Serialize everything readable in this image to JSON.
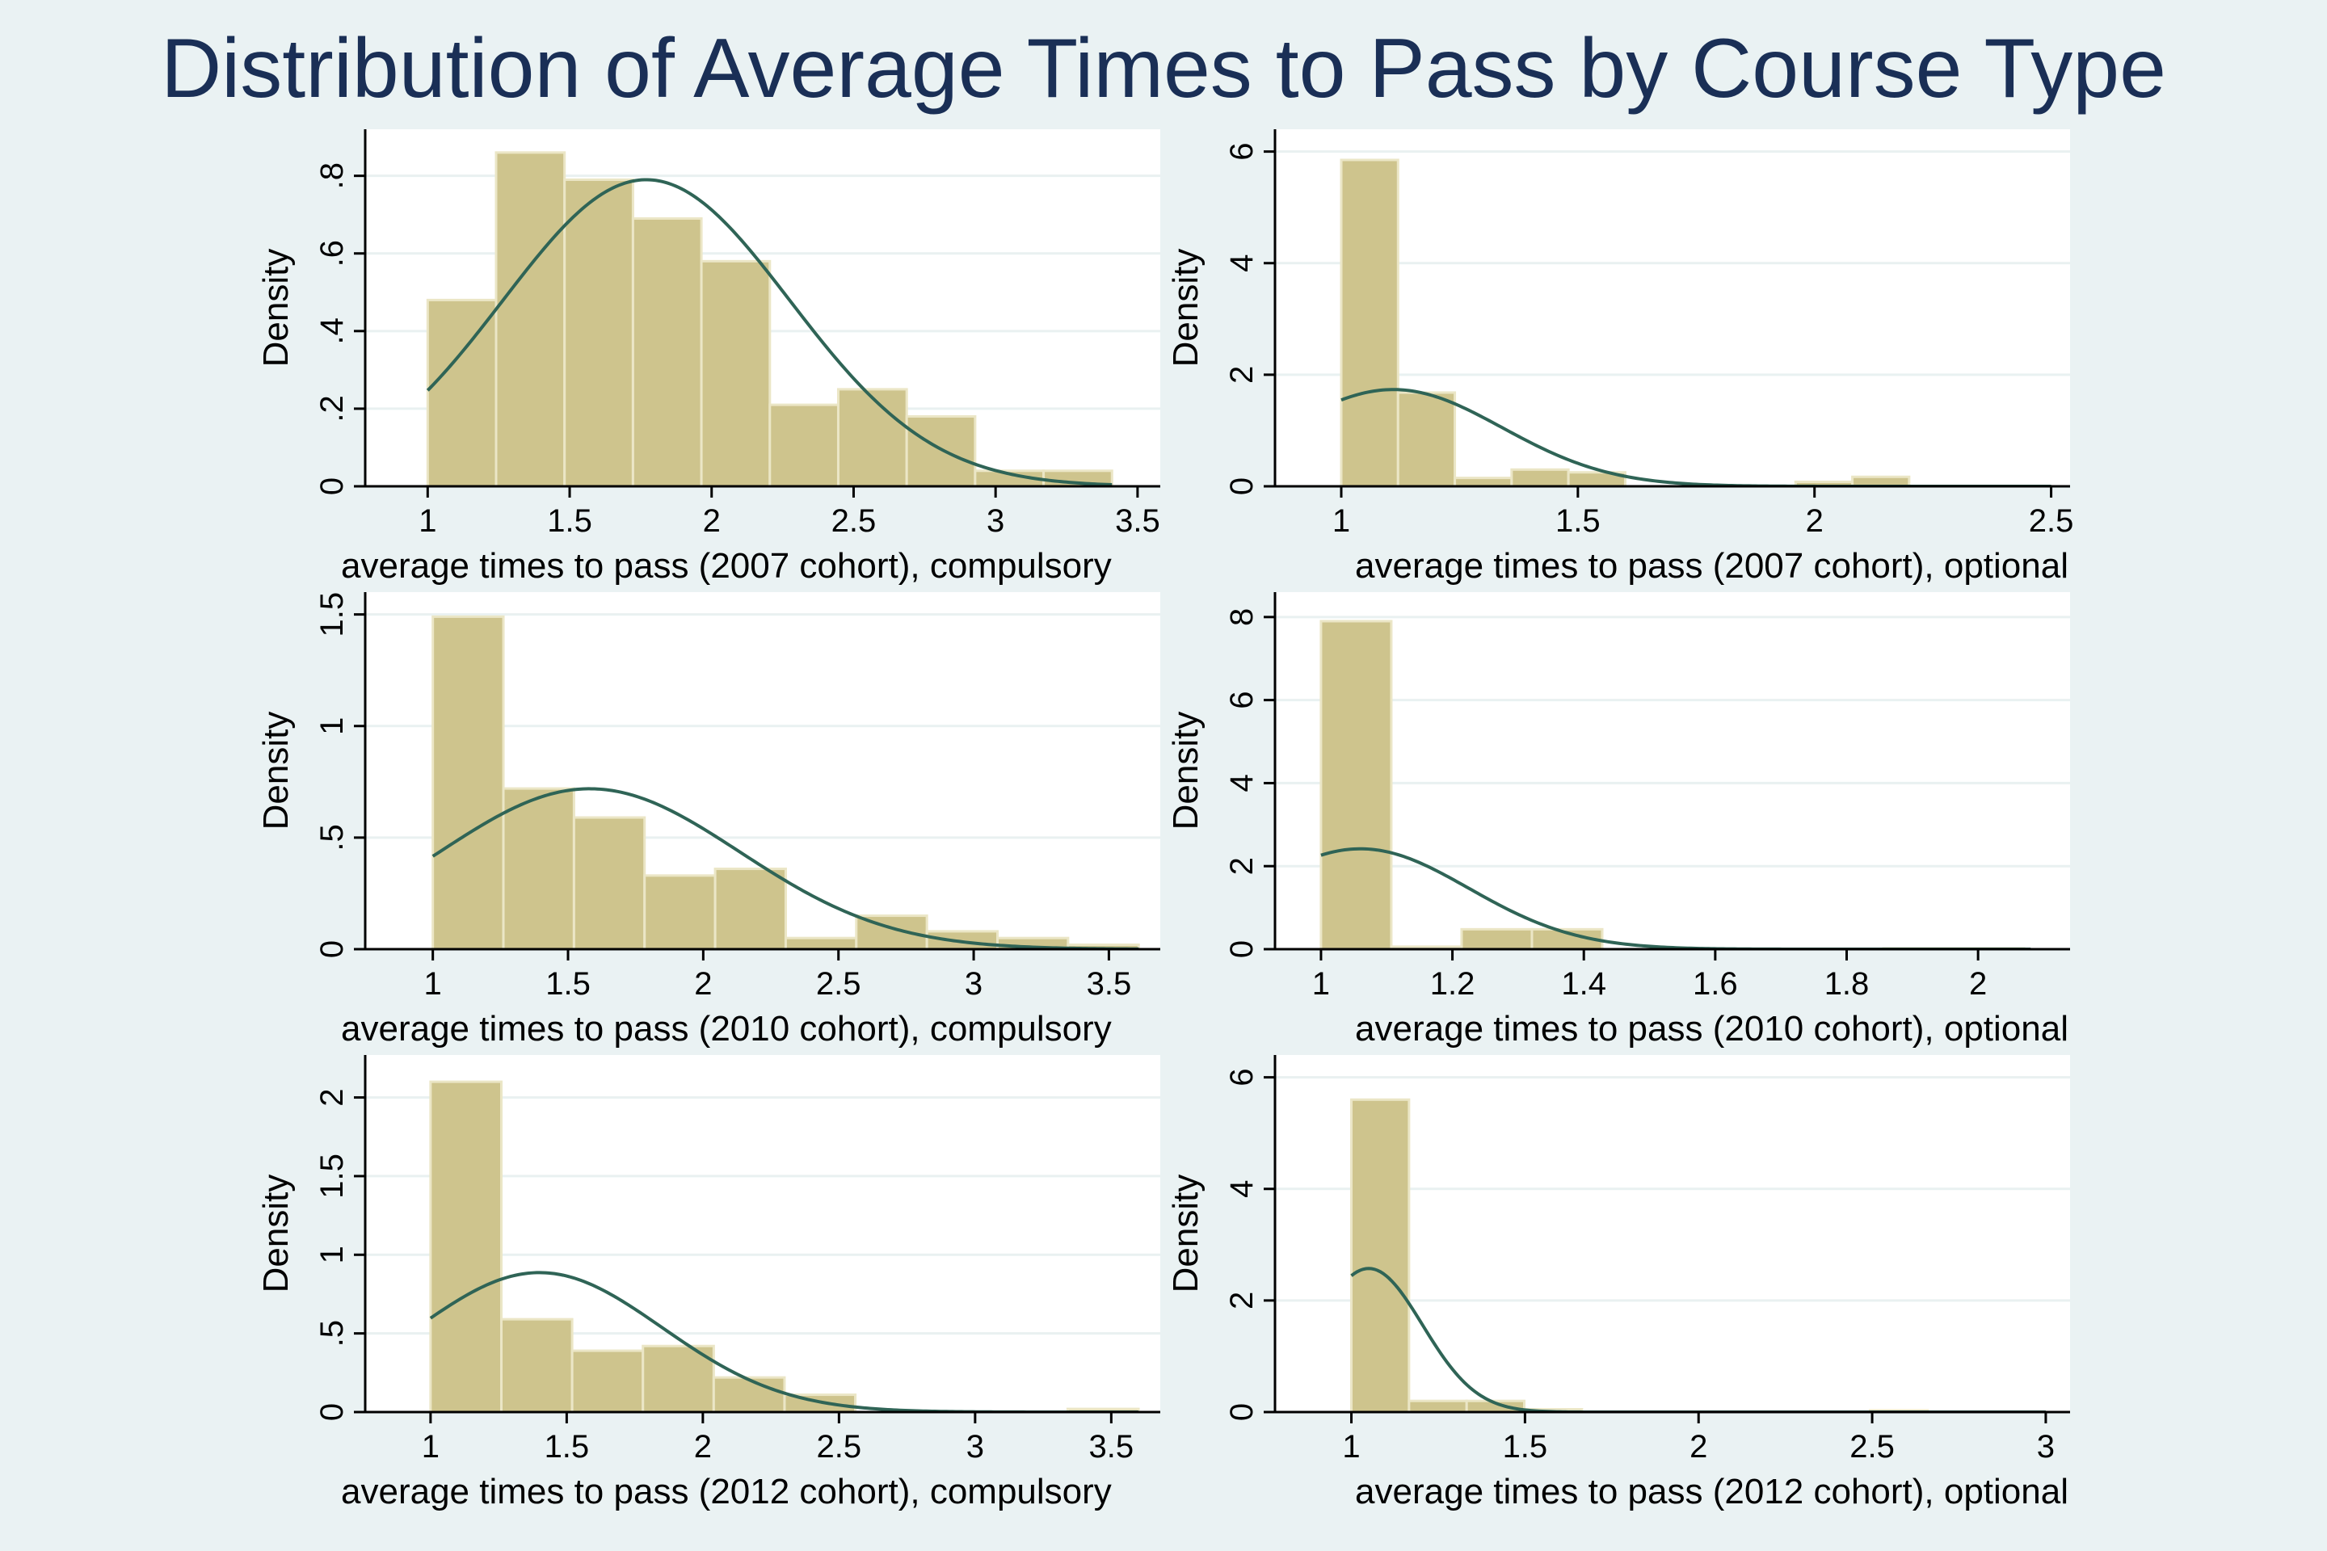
{
  "title": "Distribution of Average Times to Pass by Course Type",
  "colors": {
    "background": "#eaf2f3",
    "plot_background": "#ffffff",
    "bar_fill": "#cec48d",
    "bar_stroke": "#ebe6c6",
    "density_line": "#2f6456",
    "grid": "#e9f1f1",
    "title": "#1a2f56"
  },
  "chart_data": [
    {
      "type": "bar",
      "overlay": "normal density curve",
      "xlabel": "average times to pass (2007 cohort), compulsory",
      "ylabel": "Density",
      "xlim": [
        0.78,
        3.58
      ],
      "ylim": [
        0,
        0.92
      ],
      "xticks": [
        1,
        1.5,
        2,
        2.5,
        3,
        3.5
      ],
      "xtick_labels": [
        "1",
        "1.5",
        "2",
        "2.5",
        "3",
        "3.5"
      ],
      "yticks": [
        0,
        0.2,
        0.4,
        0.6,
        0.8
      ],
      "ytick_labels": [
        "0",
        ".2",
        ".4",
        ".6",
        ".8"
      ],
      "bins": [
        {
          "from": 1.0,
          "to": 1.241,
          "density": 0.48
        },
        {
          "from": 1.241,
          "to": 1.482,
          "density": 0.86
        },
        {
          "from": 1.482,
          "to": 1.723,
          "density": 0.79
        },
        {
          "from": 1.723,
          "to": 1.964,
          "density": 0.69
        },
        {
          "from": 1.964,
          "to": 2.205,
          "density": 0.58
        },
        {
          "from": 2.205,
          "to": 2.446,
          "density": 0.21
        },
        {
          "from": 2.446,
          "to": 2.687,
          "density": 0.25
        },
        {
          "from": 2.687,
          "to": 2.928,
          "density": 0.18
        },
        {
          "from": 2.928,
          "to": 3.169,
          "density": 0.04
        },
        {
          "from": 3.169,
          "to": 3.41,
          "density": 0.04
        }
      ],
      "normal": {
        "mean": 1.77,
        "sd": 0.505,
        "x_from": 1.0,
        "x_to": 3.41
      }
    },
    {
      "type": "bar",
      "overlay": "normal density curve",
      "xlabel": "average times to pass (2007 cohort), optional",
      "ylabel": "Density",
      "xlim": [
        0.86,
        2.54
      ],
      "ylim": [
        0,
        6.4
      ],
      "xticks": [
        1,
        1.5,
        2,
        2.5
      ],
      "xtick_labels": [
        "1",
        "1.5",
        "2",
        "2.5"
      ],
      "yticks": [
        0,
        2,
        4,
        6
      ],
      "ytick_labels": [
        "0",
        "2",
        "4",
        "6"
      ],
      "bins": [
        {
          "from": 1.0,
          "to": 1.12,
          "density": 5.85
        },
        {
          "from": 1.12,
          "to": 1.24,
          "density": 1.68
        },
        {
          "from": 1.24,
          "to": 1.36,
          "density": 0.15
        },
        {
          "from": 1.36,
          "to": 1.48,
          "density": 0.3
        },
        {
          "from": 1.48,
          "to": 1.6,
          "density": 0.25
        },
        {
          "from": 1.6,
          "to": 1.72,
          "density": 0.0
        },
        {
          "from": 1.72,
          "to": 1.84,
          "density": 0.0
        },
        {
          "from": 1.84,
          "to": 1.96,
          "density": 0.0
        },
        {
          "from": 1.96,
          "to": 2.08,
          "density": 0.08
        },
        {
          "from": 2.08,
          "to": 2.2,
          "density": 0.17
        }
      ],
      "normal": {
        "mean": 1.11,
        "sd": 0.23,
        "x_from": 1.0,
        "x_to": 2.5
      }
    },
    {
      "type": "bar",
      "overlay": "normal density curve",
      "xlabel": "average times to pass (2010 cohort), compulsory",
      "ylabel": "Density",
      "xlim": [
        0.75,
        3.69
      ],
      "ylim": [
        0,
        1.6
      ],
      "xticks": [
        1,
        1.5,
        2,
        2.5,
        3,
        3.5
      ],
      "xtick_labels": [
        "1",
        "1.5",
        "2",
        "2.5",
        "3",
        "3.5"
      ],
      "yticks": [
        0,
        0.5,
        1,
        1.5
      ],
      "ytick_labels": [
        "0",
        ".5",
        "1",
        "1.5"
      ],
      "bins": [
        {
          "from": 1.0,
          "to": 1.261,
          "density": 1.49
        },
        {
          "from": 1.261,
          "to": 1.522,
          "density": 0.72
        },
        {
          "from": 1.522,
          "to": 1.783,
          "density": 0.59
        },
        {
          "from": 1.783,
          "to": 2.044,
          "density": 0.33
        },
        {
          "from": 2.044,
          "to": 2.305,
          "density": 0.36
        },
        {
          "from": 2.305,
          "to": 2.566,
          "density": 0.05
        },
        {
          "from": 2.566,
          "to": 2.827,
          "density": 0.15
        },
        {
          "from": 2.827,
          "to": 3.088,
          "density": 0.08
        },
        {
          "from": 3.088,
          "to": 3.349,
          "density": 0.05
        },
        {
          "from": 3.349,
          "to": 3.61,
          "density": 0.02
        }
      ],
      "normal": {
        "mean": 1.58,
        "sd": 0.555,
        "x_from": 1.0,
        "x_to": 3.61
      }
    },
    {
      "type": "bar",
      "overlay": "normal density curve",
      "xlabel": "average times to pass (2010 cohort), optional",
      "ylabel": "Density",
      "xlim": [
        0.93,
        2.14
      ],
      "ylim": [
        0,
        8.6
      ],
      "xticks": [
        1,
        1.2,
        1.4,
        1.6,
        1.8,
        2
      ],
      "xtick_labels": [
        "1",
        "1.2",
        "1.4",
        "1.6",
        "1.8",
        "2"
      ],
      "yticks": [
        0,
        2,
        4,
        6,
        8
      ],
      "ytick_labels": [
        "0",
        "2",
        "4",
        "6",
        "8"
      ],
      "bins": [
        {
          "from": 1.0,
          "to": 1.107,
          "density": 7.9
        },
        {
          "from": 1.107,
          "to": 1.214,
          "density": 0.06
        },
        {
          "from": 1.214,
          "to": 1.321,
          "density": 0.48
        },
        {
          "from": 1.321,
          "to": 1.428,
          "density": 0.48
        },
        {
          "from": 1.428,
          "to": 1.535,
          "density": 0.0
        },
        {
          "from": 1.535,
          "to": 1.642,
          "density": 0.0
        },
        {
          "from": 1.642,
          "to": 1.749,
          "density": 0.0
        },
        {
          "from": 1.749,
          "to": 1.856,
          "density": 0.0
        },
        {
          "from": 1.856,
          "to": 1.963,
          "density": 0.02
        },
        {
          "from": 1.963,
          "to": 2.07,
          "density": 0.02
        }
      ],
      "normal": {
        "mean": 1.06,
        "sd": 0.165,
        "x_from": 1.0,
        "x_to": 2.08
      }
    },
    {
      "type": "bar",
      "overlay": "normal density curve",
      "xlabel": "average times to pass (2012 cohort), compulsory",
      "ylabel": "Density",
      "xlim": [
        0.76,
        3.68
      ],
      "ylim": [
        0,
        2.27
      ],
      "xticks": [
        1,
        1.5,
        2,
        2.5,
        3,
        3.5
      ],
      "xtick_labels": [
        "1",
        "1.5",
        "2",
        "2.5",
        "3",
        "3.5"
      ],
      "yticks": [
        0,
        0.5,
        1,
        1.5,
        2
      ],
      "ytick_labels": [
        "0",
        ".5",
        "1",
        "1.5",
        "2"
      ],
      "bins": [
        {
          "from": 1.0,
          "to": 1.26,
          "density": 2.1
        },
        {
          "from": 1.26,
          "to": 1.52,
          "density": 0.59
        },
        {
          "from": 1.52,
          "to": 1.78,
          "density": 0.39
        },
        {
          "from": 1.78,
          "to": 2.04,
          "density": 0.42
        },
        {
          "from": 2.04,
          "to": 2.3,
          "density": 0.22
        },
        {
          "from": 2.3,
          "to": 2.56,
          "density": 0.11
        },
        {
          "from": 2.56,
          "to": 2.82,
          "density": 0.0
        },
        {
          "from": 2.82,
          "to": 3.08,
          "density": 0.0
        },
        {
          "from": 3.08,
          "to": 3.34,
          "density": 0.0
        },
        {
          "from": 3.34,
          "to": 3.6,
          "density": 0.02
        }
      ],
      "normal": {
        "mean": 1.4,
        "sd": 0.45,
        "x_from": 1.0,
        "x_to": 3.6
      }
    },
    {
      "type": "bar",
      "overlay": "normal density curve",
      "xlabel": "average times to pass (2012 cohort), optional",
      "ylabel": "Density",
      "xlim": [
        0.78,
        3.07
      ],
      "ylim": [
        0,
        6.4
      ],
      "xticks": [
        1,
        1.5,
        2,
        2.5,
        3
      ],
      "xtick_labels": [
        "1",
        "1.5",
        "2",
        "2.5",
        "3"
      ],
      "yticks": [
        0,
        2,
        4,
        6
      ],
      "ytick_labels": [
        "0",
        "2",
        "4",
        "6"
      ],
      "bins": [
        {
          "from": 1.0,
          "to": 1.166,
          "density": 5.6
        },
        {
          "from": 1.166,
          "to": 1.332,
          "density": 0.2
        },
        {
          "from": 1.332,
          "to": 1.498,
          "density": 0.2
        },
        {
          "from": 1.498,
          "to": 1.664,
          "density": 0.05
        },
        {
          "from": 1.664,
          "to": 1.83,
          "density": 0.0
        },
        {
          "from": 1.83,
          "to": 1.996,
          "density": 0.0
        },
        {
          "from": 1.996,
          "to": 2.162,
          "density": 0.0
        },
        {
          "from": 2.162,
          "to": 2.328,
          "density": 0.0
        },
        {
          "from": 2.328,
          "to": 2.494,
          "density": 0.0
        },
        {
          "from": 2.494,
          "to": 2.66,
          "density": 0.03
        }
      ],
      "normal": {
        "mean": 1.05,
        "sd": 0.155,
        "x_from": 1.0,
        "x_to": 3.0
      }
    }
  ]
}
